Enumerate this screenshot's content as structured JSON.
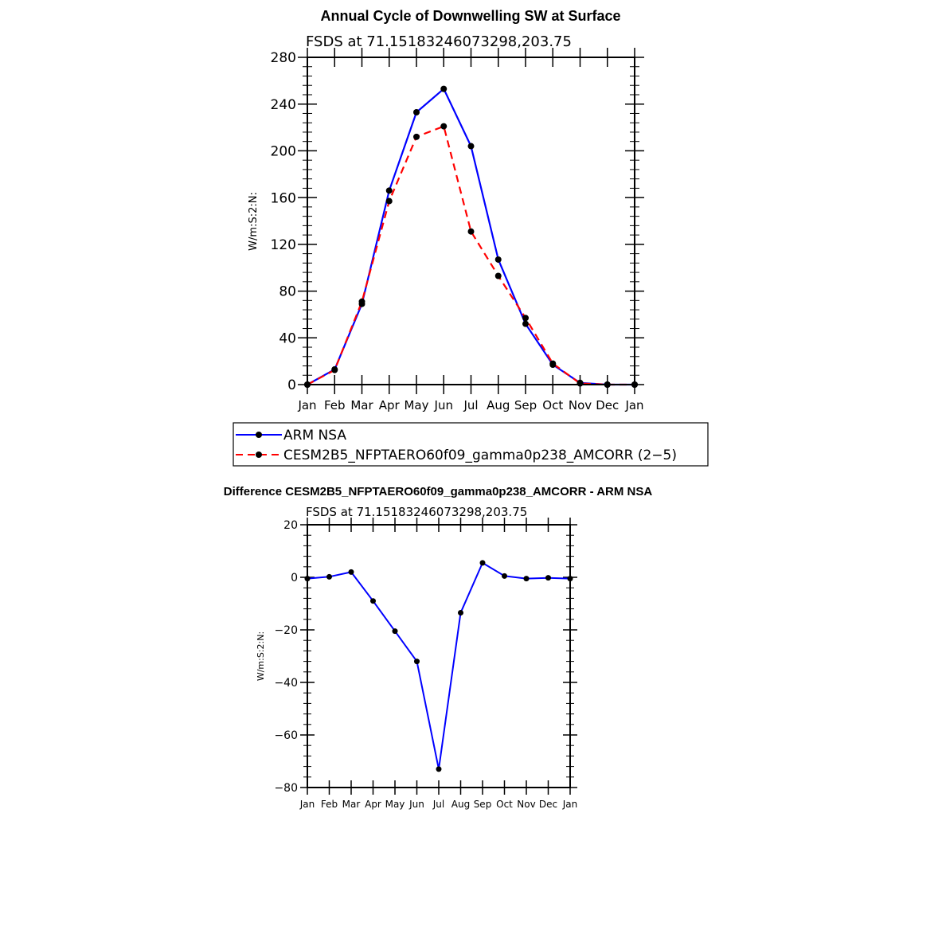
{
  "chart_data": [
    {
      "type": "line",
      "title": "Annual Cycle of Downwelling SW at Surface",
      "subtitle": "FSDS at 71.15183246073298,203.75",
      "ylabel": "W/m:S:2:N:",
      "xlabel": "",
      "ylim": [
        0,
        280
      ],
      "yticks": [
        "0",
        "40",
        "80",
        "120",
        "160",
        "200",
        "240",
        "280"
      ],
      "categories": [
        "Jan",
        "Feb",
        "Mar",
        "Apr",
        "May",
        "Jun",
        "Jul",
        "Aug",
        "Sep",
        "Oct",
        "Nov",
        "Dec",
        "Jan"
      ],
      "legend_position": "bottom",
      "series": [
        {
          "name": "ARM NSA",
          "color": "#0000ff",
          "dash": "solid",
          "values": [
            0,
            13,
            69,
            166,
            233,
            253,
            204,
            107,
            52,
            17,
            1.5,
            0,
            0
          ]
        },
        {
          "name": "CESM2B5_NFPTAERO60f09_gamma0p238_AMCORR (2−5)",
          "color": "#ff0000",
          "dash": "dashed",
          "values": [
            0,
            12.5,
            71,
            157,
            212,
            221,
            131,
            93,
            57,
            18,
            1,
            0,
            0
          ]
        }
      ]
    },
    {
      "type": "line",
      "title": "Difference CESM2B5_NFPTAERO60f09_gamma0p238_AMCORR - ARM NSA",
      "subtitle": "FSDS at 71.15183246073298,203.75",
      "ylabel": "W/m:S:2:N:",
      "xlabel": "",
      "ylim": [
        -80,
        20
      ],
      "yticks": [
        "−80",
        "−60",
        "−40",
        "−20",
        "0",
        "20"
      ],
      "categories": [
        "Jan",
        "Feb",
        "Mar",
        "Apr",
        "May",
        "Jun",
        "Jul",
        "Aug",
        "Sep",
        "Oct",
        "Nov",
        "Dec",
        "Jan"
      ],
      "series": [
        {
          "name": "",
          "color": "#0000ff",
          "dash": "solid",
          "values": [
            -0.5,
            0.2,
            2,
            -9,
            -20.5,
            -32,
            -73,
            -13.5,
            5.5,
            0.5,
            -0.5,
            -0.2,
            -0.5
          ]
        }
      ]
    }
  ]
}
